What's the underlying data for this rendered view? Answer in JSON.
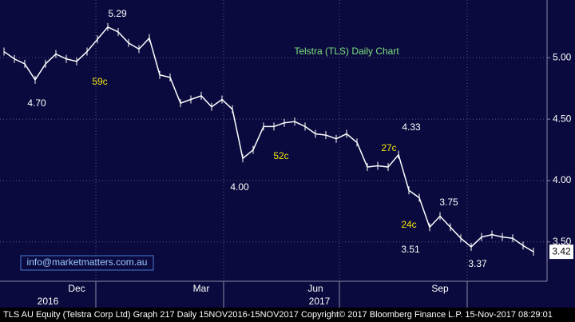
{
  "chart_data": {
    "type": "line",
    "title": "Telstra (TLS) Daily Chart",
    "categories": [
      null,
      null,
      null,
      null,
      null,
      null,
      null,
      "Dec",
      null,
      null,
      null,
      null,
      null,
      null,
      null,
      null,
      null,
      null,
      null,
      "Mar",
      null,
      null,
      null,
      null,
      null,
      null,
      null,
      null,
      null,
      null,
      "Jun",
      null,
      null,
      null,
      null,
      null,
      null,
      null,
      null,
      null,
      null,
      null,
      "Sep",
      null,
      null,
      null,
      null,
      null,
      null,
      null,
      null,
      null
    ],
    "year_labels": [
      "2016",
      "2017"
    ],
    "series": [
      {
        "name": "TLS AU Equity",
        "color": "#ffffff",
        "values": [
          5.05,
          4.99,
          4.95,
          4.82,
          4.95,
          5.03,
          4.99,
          4.97,
          5.05,
          5.15,
          5.25,
          5.21,
          5.12,
          5.07,
          5.16,
          4.86,
          4.84,
          4.63,
          4.66,
          4.69,
          4.6,
          4.66,
          4.58,
          4.18,
          4.25,
          4.44,
          4.44,
          4.47,
          4.48,
          4.44,
          4.38,
          4.37,
          4.34,
          4.38,
          4.31,
          4.11,
          4.12,
          4.11,
          4.21,
          3.92,
          3.86,
          3.62,
          3.71,
          3.62,
          3.53,
          3.46,
          3.54,
          3.56,
          3.54,
          3.53,
          3.47,
          3.42
        ]
      }
    ],
    "ylim": [
      3.18,
      5.47
    ],
    "yticks": [
      {
        "value": 3.5,
        "label": "3.50"
      },
      {
        "value": 4,
        "label": "4.00"
      },
      {
        "value": 4.5,
        "label": "4.50"
      },
      {
        "value": 5,
        "label": "5.00"
      }
    ],
    "grid": true,
    "annotations": [
      "5.29",
      "4.70",
      "59c",
      "4.00",
      "52c",
      "4.33",
      "27c",
      "3.75",
      "24c",
      "3.51",
      "3.37"
    ],
    "contact": "info@marketmatters.com.au",
    "footer": "TLS AU Equity (Telstra Corp Ltd) Graph 217  Daily 15NOV2016-15NOV2017 Copyright© 2017 Bloomberg Finance L.P.  15-Nov-2017 08:29:01"
  }
}
